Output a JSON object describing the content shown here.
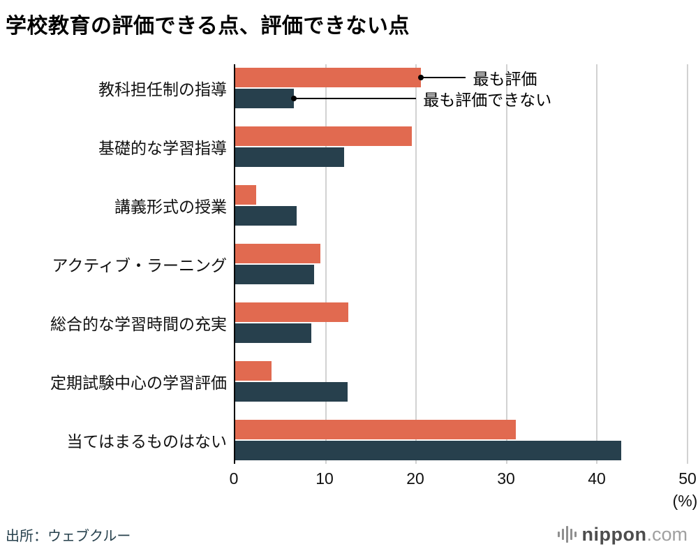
{
  "title": "学校教育の評価できる点、評価できない点",
  "source": "出所：ウェブクルー",
  "brand": {
    "name": "nippon",
    "tld": ".com"
  },
  "chart_data": {
    "type": "bar",
    "orientation": "horizontal",
    "title": "学校教育の評価できる点、評価できない点",
    "xlabel": "(%)",
    "ylabel": "",
    "xlim": [
      0,
      50
    ],
    "ticks": [
      0,
      10,
      20,
      30,
      40,
      50
    ],
    "grid": "vertical",
    "legend_position": "inline-annotations",
    "categories": [
      "教科担任制の指導",
      "基礎的な学習指導",
      "講義形式の授業",
      "アクティブ・ラーニング",
      "総合的な学習時間の充実",
      "定期試験中心の学習評価",
      "当てはまるものはない"
    ],
    "series": [
      {
        "name": "最も評価",
        "color": "#e16a50",
        "values": [
          20.5,
          19.5,
          2.3,
          9.4,
          12.5,
          4.0,
          31.0
        ]
      },
      {
        "name": "最も評価できない",
        "color": "#27404d",
        "values": [
          6.5,
          12.0,
          6.8,
          8.7,
          8.4,
          12.4,
          42.7
        ]
      }
    ],
    "annotations": [
      {
        "series": 0,
        "group": 0,
        "label": "最も評価",
        "label_x_pct": 51
      },
      {
        "series": 1,
        "group": 0,
        "label": "最も評価できない",
        "label_x_pct": 40
      }
    ]
  }
}
